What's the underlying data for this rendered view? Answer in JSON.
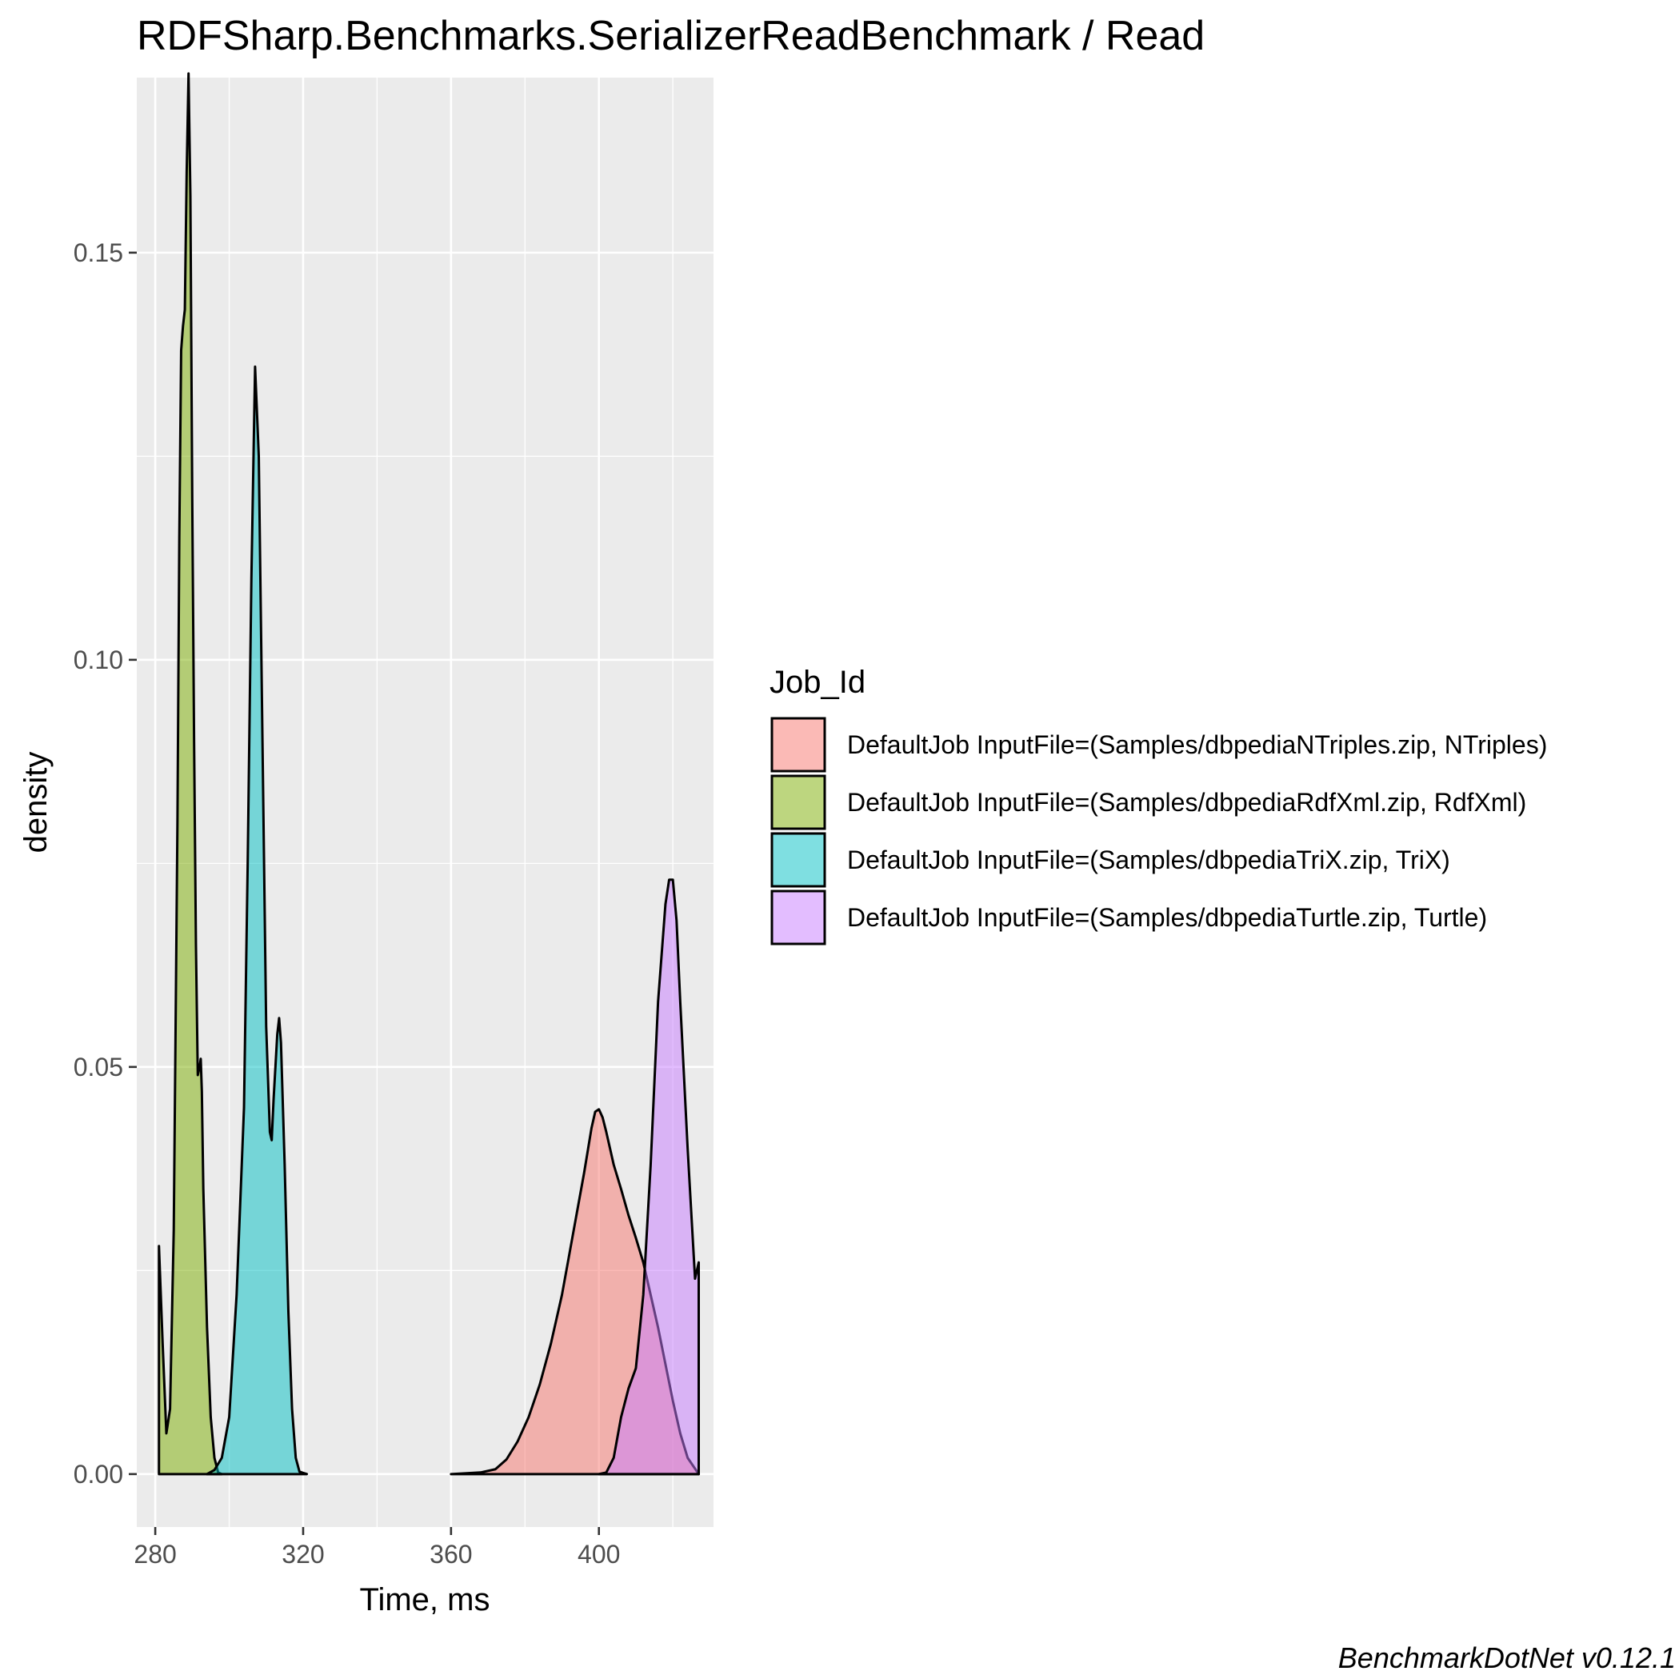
{
  "chart_data": {
    "type": "area",
    "title": "RDFSharp.Benchmarks.SerializerReadBenchmark / Read",
    "xlabel": "Time, ms",
    "ylabel": "density",
    "caption": "BenchmarkDotNet v0.12.1",
    "xlim": [
      275,
      431
    ],
    "ylim": [
      -0.0065,
      0.1715
    ],
    "xticks": [
      280,
      320,
      360,
      400
    ],
    "xtick_labels": [
      "280",
      "320",
      "360",
      "400"
    ],
    "yticks": [
      0,
      0.05,
      0.1,
      0.15
    ],
    "ytick_labels": [
      "0.00",
      "0.05",
      "0.10",
      "0.15"
    ],
    "grid": true,
    "legend": {
      "title": "Job_Id",
      "position": "right"
    },
    "series": [
      {
        "name": "DefaultJob InputFile=(Samples/dbpediaNTriples.zip, NTriples)",
        "color": "#F8766D",
        "points": [
          [
            360,
            0
          ],
          [
            368,
            0.0002
          ],
          [
            372,
            0.0006
          ],
          [
            375,
            0.0018
          ],
          [
            378,
            0.004
          ],
          [
            381,
            0.007
          ],
          [
            384,
            0.011
          ],
          [
            387,
            0.016
          ],
          [
            390,
            0.022
          ],
          [
            392,
            0.027
          ],
          [
            394,
            0.032
          ],
          [
            396,
            0.037
          ],
          [
            398,
            0.0425
          ],
          [
            399,
            0.0445
          ],
          [
            400,
            0.0448
          ],
          [
            401,
            0.0438
          ],
          [
            402,
            0.042
          ],
          [
            404,
            0.038
          ],
          [
            406,
            0.035
          ],
          [
            408,
            0.0318
          ],
          [
            410,
            0.029
          ],
          [
            412,
            0.026
          ],
          [
            414,
            0.022
          ],
          [
            416,
            0.018
          ],
          [
            418,
            0.0135
          ],
          [
            420,
            0.009
          ],
          [
            422,
            0.005
          ],
          [
            424,
            0.002
          ],
          [
            427,
            0
          ]
        ]
      },
      {
        "name": "DefaultJob InputFile=(Samples/dbpediaRdfXml.zip, RdfXml)",
        "color": "#7CAE00",
        "points": [
          [
            281,
            0
          ],
          [
            281,
            0.028
          ],
          [
            282,
            0.016
          ],
          [
            283,
            0.005
          ],
          [
            284,
            0.008
          ],
          [
            285,
            0.03
          ],
          [
            286,
            0.08
          ],
          [
            286.5,
            0.115
          ],
          [
            287,
            0.138
          ],
          [
            287.5,
            0.141
          ],
          [
            288,
            0.143
          ],
          [
            288.5,
            0.16
          ],
          [
            289,
            0.172
          ],
          [
            289.5,
            0.157
          ],
          [
            290,
            0.12
          ],
          [
            290.5,
            0.09
          ],
          [
            291,
            0.065
          ],
          [
            291.5,
            0.049
          ],
          [
            292,
            0.05
          ],
          [
            292.3,
            0.051
          ],
          [
            292.6,
            0.047
          ],
          [
            293,
            0.035
          ],
          [
            294,
            0.018
          ],
          [
            295,
            0.007
          ],
          [
            296,
            0.002
          ],
          [
            297,
            0.0002
          ],
          [
            298,
            0
          ]
        ]
      },
      {
        "name": "DefaultJob InputFile=(Samples/dbpediaTriX.zip, TriX)",
        "color": "#00BFC4",
        "points": [
          [
            294,
            0
          ],
          [
            296,
            0.0005
          ],
          [
            298,
            0.002
          ],
          [
            300,
            0.007
          ],
          [
            302,
            0.022
          ],
          [
            304,
            0.045
          ],
          [
            305,
            0.075
          ],
          [
            306,
            0.11
          ],
          [
            307,
            0.136
          ],
          [
            308,
            0.125
          ],
          [
            309,
            0.09
          ],
          [
            310,
            0.055
          ],
          [
            311,
            0.042
          ],
          [
            311.5,
            0.041
          ],
          [
            312,
            0.046
          ],
          [
            313,
            0.054
          ],
          [
            313.5,
            0.056
          ],
          [
            314,
            0.053
          ],
          [
            315,
            0.038
          ],
          [
            316,
            0.02
          ],
          [
            317,
            0.008
          ],
          [
            318,
            0.002
          ],
          [
            319,
            0.0003
          ],
          [
            321,
            0
          ]
        ]
      },
      {
        "name": "DefaultJob InputFile=(Samples/dbpediaTurtle.zip, Turtle)",
        "color": "#C77CFF",
        "points": [
          [
            400,
            0
          ],
          [
            402,
            0.0002
          ],
          [
            404,
            0.002
          ],
          [
            406,
            0.007
          ],
          [
            408,
            0.0105
          ],
          [
            410,
            0.013
          ],
          [
            412,
            0.022
          ],
          [
            414,
            0.038
          ],
          [
            416,
            0.058
          ],
          [
            418,
            0.07
          ],
          [
            419,
            0.073
          ],
          [
            420,
            0.073
          ],
          [
            421,
            0.068
          ],
          [
            422,
            0.058
          ],
          [
            424,
            0.04
          ],
          [
            426,
            0.024
          ],
          [
            427,
            0.026
          ],
          [
            427,
            0
          ]
        ]
      }
    ]
  }
}
